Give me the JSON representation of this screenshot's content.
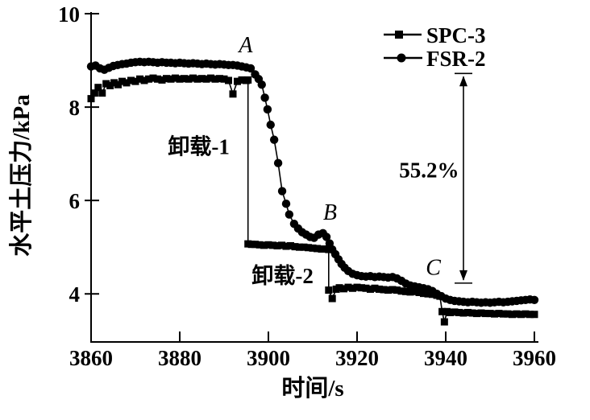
{
  "figure": {
    "background_color": "#ffffff",
    "ink_color": "#000000"
  },
  "axes": {
    "x_label": "时间/s",
    "y_label": "水平土压力/kPa"
  },
  "legend": {
    "items": [
      {
        "label": "SPC-3",
        "marker": "square"
      },
      {
        "label": "FSR-2",
        "marker": "circle"
      }
    ]
  },
  "chart_data": {
    "type": "line",
    "title": "",
    "xlabel": "时间/s",
    "ylabel": "水平土压力/kPa",
    "xlim": [
      3860,
      3960
    ],
    "ylim": [
      2.97,
      10
    ],
    "x_ticks": [
      3860,
      3880,
      3900,
      3920,
      3940,
      3960
    ],
    "y_ticks": [
      4,
      6,
      8,
      10
    ],
    "grid": false,
    "legend_position": "top-right",
    "series": [
      {
        "name": "SPC-3",
        "marker": "square",
        "color": "#000000",
        "points": [
          [
            3860,
            8.18
          ],
          [
            3860.8,
            8.3
          ],
          [
            3861.6,
            8.42
          ],
          [
            3862.5,
            8.3
          ],
          [
            3863.4,
            8.5
          ],
          [
            3864.3,
            8.46
          ],
          [
            3865.2,
            8.52
          ],
          [
            3866.1,
            8.48
          ],
          [
            3867,
            8.55
          ],
          [
            3868,
            8.52
          ],
          [
            3869,
            8.57
          ],
          [
            3870,
            8.55
          ],
          [
            3871,
            8.6
          ],
          [
            3872,
            8.57
          ],
          [
            3873,
            8.6
          ],
          [
            3874,
            8.62
          ],
          [
            3875,
            8.6
          ],
          [
            3876,
            8.58
          ],
          [
            3877,
            8.61
          ],
          [
            3878,
            8.6
          ],
          [
            3879,
            8.62
          ],
          [
            3880,
            8.6
          ],
          [
            3881,
            8.61
          ],
          [
            3882,
            8.6
          ],
          [
            3883,
            8.62
          ],
          [
            3884,
            8.6
          ],
          [
            3885,
            8.61
          ],
          [
            3886,
            8.6
          ],
          [
            3887,
            8.62
          ],
          [
            3888,
            8.6
          ],
          [
            3889,
            8.61
          ],
          [
            3890,
            8.6
          ],
          [
            3891,
            8.57
          ],
          [
            3892,
            8.28
          ],
          [
            3893,
            8.55
          ],
          [
            3894,
            8.58
          ],
          [
            3895,
            8.57
          ],
          [
            3895.4,
            8.58
          ],
          [
            3895.4,
            5.07
          ],
          [
            3896.2,
            5.06
          ],
          [
            3897,
            5.06
          ],
          [
            3898,
            5.05
          ],
          [
            3899,
            5.04
          ],
          [
            3900,
            5.05
          ],
          [
            3901,
            5.04
          ],
          [
            3902,
            5.03
          ],
          [
            3903,
            5.04
          ],
          [
            3904,
            5.02
          ],
          [
            3905,
            5.03
          ],
          [
            3906,
            5.01
          ],
          [
            3907,
            5.0
          ],
          [
            3908,
            5.0
          ],
          [
            3909,
            4.99
          ],
          [
            3910,
            4.98
          ],
          [
            3911,
            4.97
          ],
          [
            3912,
            4.96
          ],
          [
            3913,
            4.96
          ],
          [
            3913.6,
            4.95
          ],
          [
            3913.6,
            4.08
          ],
          [
            3914.4,
            3.9
          ],
          [
            3915.3,
            4.1
          ],
          [
            3916,
            4.13
          ],
          [
            3917,
            4.11
          ],
          [
            3918,
            4.14
          ],
          [
            3919,
            4.12
          ],
          [
            3920,
            4.14
          ],
          [
            3921,
            4.13
          ],
          [
            3922,
            4.12
          ],
          [
            3923,
            4.1
          ],
          [
            3924,
            4.12
          ],
          [
            3925,
            4.1
          ],
          [
            3926,
            4.09
          ],
          [
            3927,
            4.08
          ],
          [
            3928,
            4.09
          ],
          [
            3929,
            4.08
          ],
          [
            3930,
            4.06
          ],
          [
            3931,
            4.05
          ],
          [
            3932,
            4.04
          ],
          [
            3933,
            4.05
          ],
          [
            3934,
            4.03
          ],
          [
            3935,
            4.01
          ],
          [
            3936,
            4.0
          ],
          [
            3937,
            3.99
          ],
          [
            3938,
            3.97
          ],
          [
            3938.7,
            3.95
          ],
          [
            3939.2,
            3.62
          ],
          [
            3939.7,
            3.4
          ],
          [
            3940.3,
            3.62
          ],
          [
            3941,
            3.6
          ],
          [
            3942,
            3.61
          ],
          [
            3943,
            3.6
          ],
          [
            3944,
            3.59
          ],
          [
            3945,
            3.6
          ],
          [
            3946,
            3.59
          ],
          [
            3947,
            3.58
          ],
          [
            3948,
            3.59
          ],
          [
            3949,
            3.58
          ],
          [
            3950,
            3.58
          ],
          [
            3951,
            3.57
          ],
          [
            3952,
            3.58
          ],
          [
            3953,
            3.57
          ],
          [
            3954,
            3.57
          ],
          [
            3955,
            3.56
          ],
          [
            3956,
            3.57
          ],
          [
            3957,
            3.56
          ],
          [
            3958,
            3.57
          ],
          [
            3959,
            3.56
          ],
          [
            3960,
            3.56
          ]
        ]
      },
      {
        "name": "FSR-2",
        "marker": "circle",
        "color": "#000000",
        "points": [
          [
            3860,
            8.87
          ],
          [
            3861,
            8.89
          ],
          [
            3862,
            8.83
          ],
          [
            3863,
            8.8
          ],
          [
            3864,
            8.84
          ],
          [
            3865,
            8.88
          ],
          [
            3866,
            8.9
          ],
          [
            3867,
            8.92
          ],
          [
            3868,
            8.93
          ],
          [
            3869,
            8.95
          ],
          [
            3870,
            8.96
          ],
          [
            3871,
            8.97
          ],
          [
            3872,
            8.96
          ],
          [
            3873,
            8.97
          ],
          [
            3874,
            8.96
          ],
          [
            3875,
            8.95
          ],
          [
            3876,
            8.96
          ],
          [
            3877,
            8.95
          ],
          [
            3878,
            8.95
          ],
          [
            3879,
            8.94
          ],
          [
            3880,
            8.95
          ],
          [
            3881,
            8.94
          ],
          [
            3882,
            8.93
          ],
          [
            3883,
            8.94
          ],
          [
            3884,
            8.93
          ],
          [
            3885,
            8.92
          ],
          [
            3886,
            8.93
          ],
          [
            3887,
            8.92
          ],
          [
            3888,
            8.91
          ],
          [
            3889,
            8.92
          ],
          [
            3890,
            8.91
          ],
          [
            3891,
            8.9
          ],
          [
            3892,
            8.9
          ],
          [
            3893,
            8.89
          ],
          [
            3894,
            8.87
          ],
          [
            3895,
            8.85
          ],
          [
            3896,
            8.83
          ],
          [
            3897,
            8.7
          ],
          [
            3897.8,
            8.6
          ],
          [
            3898.5,
            8.48
          ],
          [
            3899.2,
            8.2
          ],
          [
            3899.8,
            7.95
          ],
          [
            3900.5,
            7.62
          ],
          [
            3901.3,
            7.3
          ],
          [
            3902.2,
            6.8
          ],
          [
            3903.1,
            6.2
          ],
          [
            3904,
            5.93
          ],
          [
            3904.7,
            5.7
          ],
          [
            3905.8,
            5.5
          ],
          [
            3906.7,
            5.4
          ],
          [
            3907.6,
            5.32
          ],
          [
            3908.5,
            5.27
          ],
          [
            3909.4,
            5.22
          ],
          [
            3910.3,
            5.2
          ],
          [
            3911.3,
            5.27
          ],
          [
            3912.3,
            5.3
          ],
          [
            3913.1,
            5.22
          ],
          [
            3913.8,
            5.08
          ],
          [
            3914.4,
            4.95
          ],
          [
            3915.1,
            4.85
          ],
          [
            3915.8,
            4.74
          ],
          [
            3916.5,
            4.64
          ],
          [
            3917.2,
            4.56
          ],
          [
            3918,
            4.49
          ],
          [
            3919,
            4.43
          ],
          [
            3920,
            4.4
          ],
          [
            3921,
            4.38
          ],
          [
            3922,
            4.37
          ],
          [
            3923,
            4.38
          ],
          [
            3924,
            4.36
          ],
          [
            3925,
            4.37
          ],
          [
            3926,
            4.36
          ],
          [
            3927,
            4.35
          ],
          [
            3928,
            4.36
          ],
          [
            3929,
            4.33
          ],
          [
            3930,
            4.28
          ],
          [
            3931,
            4.22
          ],
          [
            3932,
            4.18
          ],
          [
            3933,
            4.16
          ],
          [
            3934,
            4.14
          ],
          [
            3935,
            4.12
          ],
          [
            3936,
            4.1
          ],
          [
            3937,
            4.06
          ],
          [
            3938,
            4.0
          ],
          [
            3939,
            3.95
          ],
          [
            3940,
            3.9
          ],
          [
            3941,
            3.87
          ],
          [
            3942,
            3.85
          ],
          [
            3943,
            3.84
          ],
          [
            3944,
            3.83
          ],
          [
            3945,
            3.82
          ],
          [
            3946,
            3.83
          ],
          [
            3947,
            3.82
          ],
          [
            3948,
            3.81
          ],
          [
            3949,
            3.82
          ],
          [
            3950,
            3.81
          ],
          [
            3951,
            3.82
          ],
          [
            3952,
            3.83
          ],
          [
            3953,
            3.82
          ],
          [
            3954,
            3.83
          ],
          [
            3955,
            3.84
          ],
          [
            3956,
            3.85
          ],
          [
            3957,
            3.86
          ],
          [
            3958,
            3.87
          ],
          [
            3959,
            3.88
          ],
          [
            3960,
            3.87
          ]
        ]
      }
    ],
    "annotations": [
      {
        "name": "point-a",
        "kind": "point-label",
        "text": "A",
        "x": 3894.9,
        "y": 9.33
      },
      {
        "name": "point-b",
        "kind": "point-label",
        "text": "B",
        "x": 3913.9,
        "y": 5.74
      },
      {
        "name": "point-c",
        "kind": "point-label",
        "text": "C",
        "x": 3937.2,
        "y": 4.56
      },
      {
        "name": "unload-1",
        "kind": "text",
        "text": "卸载-1",
        "x": 3884.3,
        "y": 7.15
      },
      {
        "name": "unload-2",
        "kind": "text",
        "text": "卸载-2",
        "x": 3903.2,
        "y": 4.38
      },
      {
        "name": "reduction-percent",
        "kind": "text",
        "text": "55.2%",
        "x": 3943.0,
        "y": 6.65,
        "anchor": "end"
      },
      {
        "name": "reduction-arrow",
        "kind": "span",
        "x": 3944.0,
        "y_top": 8.72,
        "y_bottom": 4.23
      }
    ]
  }
}
